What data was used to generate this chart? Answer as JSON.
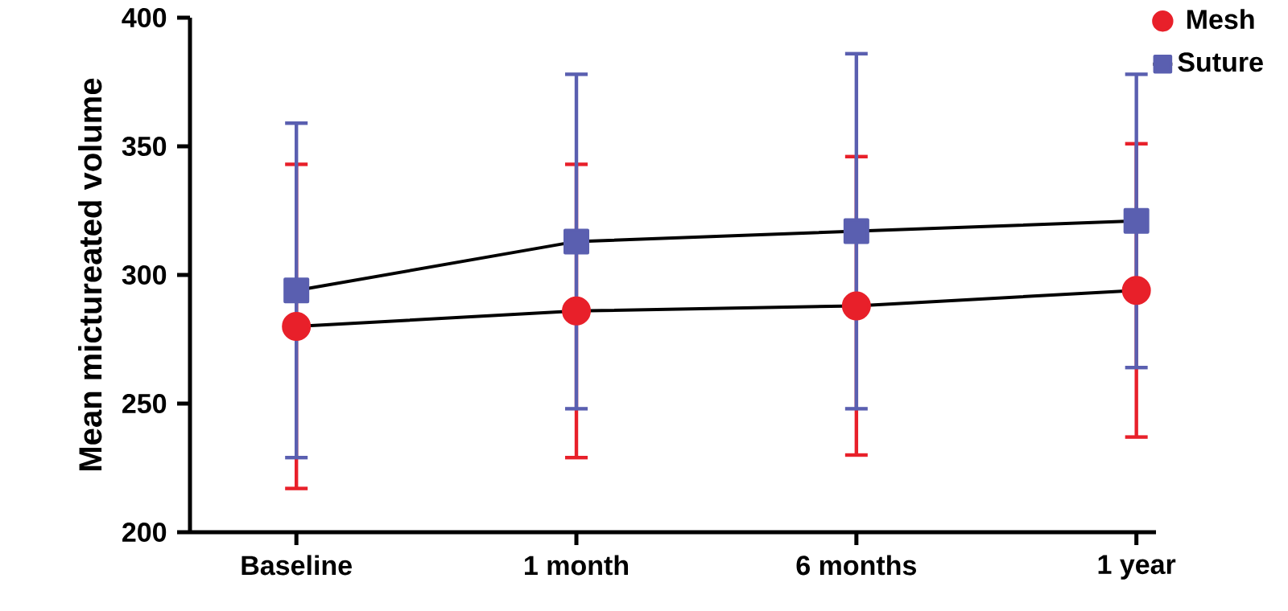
{
  "chart_data": {
    "type": "line",
    "ylabel": "Mean mictureated volume",
    "categories": [
      "Baseline",
      "1 month",
      "6 months",
      "1 year"
    ],
    "ylim": [
      200,
      400
    ],
    "yticks": [
      200,
      250,
      300,
      350,
      400
    ],
    "legend": "top right",
    "grid": false,
    "series": [
      {
        "name": "Mesh",
        "color": "#e8202a",
        "marker": "circle",
        "values": [
          280,
          286,
          288,
          294
        ],
        "errors": [
          [
            217,
            343
          ],
          [
            229,
            343
          ],
          [
            230,
            346
          ],
          [
            237,
            351
          ]
        ]
      },
      {
        "name": "Suture",
        "color": "#5a5fb0",
        "marker": "square",
        "values": [
          294,
          313,
          317,
          321
        ],
        "errors": [
          [
            229,
            359
          ],
          [
            248,
            378
          ],
          [
            248,
            386
          ],
          [
            264,
            378
          ]
        ]
      }
    ]
  }
}
